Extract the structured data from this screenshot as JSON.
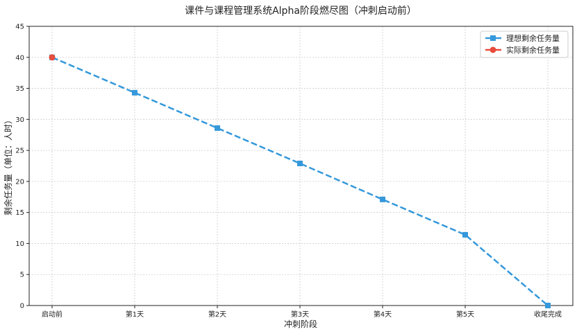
{
  "chart_data": {
    "type": "line",
    "title": "课件与课程管理系统Alpha阶段燃尽图（冲刺启动前）",
    "xlabel": "冲刺阶段",
    "ylabel": "剩余任务量（单位：人时）",
    "categories": [
      "启动前",
      "第1天",
      "第2天",
      "第3天",
      "第4天",
      "第5天",
      "收尾完成"
    ],
    "ylim": [
      0,
      45
    ],
    "yticks": [
      0,
      5,
      10,
      15,
      20,
      25,
      30,
      35,
      40,
      45
    ],
    "grid": true,
    "legend_position": "top-right",
    "series": [
      {
        "name": "理想剩余任务量",
        "values": [
          40,
          34.3,
          28.6,
          22.9,
          17.1,
          11.4,
          0
        ],
        "color": "#3498db",
        "style": "dashed",
        "marker": "square"
      },
      {
        "name": "实际剩余任务量",
        "values": [
          40,
          null,
          null,
          null,
          null,
          null,
          null
        ],
        "color": "#e74c3c",
        "style": "solid",
        "marker": "circle"
      }
    ]
  }
}
